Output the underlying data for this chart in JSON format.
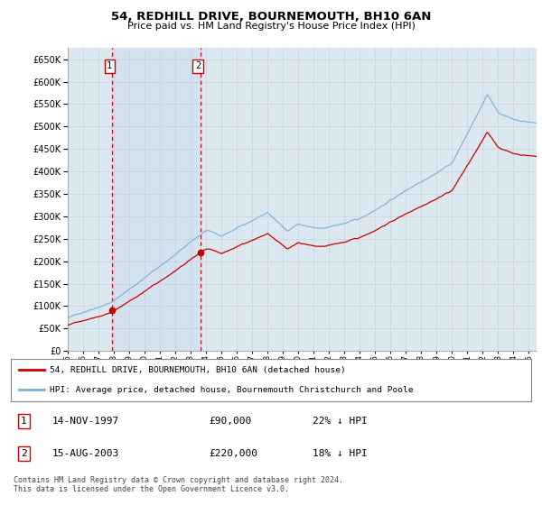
{
  "title1": "54, REDHILL DRIVE, BOURNEMOUTH, BH10 6AN",
  "title2": "Price paid vs. HM Land Registry's House Price Index (HPI)",
  "ytick_values": [
    0,
    50000,
    100000,
    150000,
    200000,
    250000,
    300000,
    350000,
    400000,
    450000,
    500000,
    550000,
    600000,
    650000
  ],
  "xlim_start": 1995.0,
  "xlim_end": 2025.5,
  "ylim_min": 0,
  "ylim_max": 675000,
  "purchase1_date": 1997.87,
  "purchase1_price": 90000,
  "purchase2_date": 2003.62,
  "purchase2_price": 220000,
  "hpi_color": "#7bafd4",
  "price_color": "#cc0000",
  "grid_color": "#c8d0dc",
  "plot_bg_color": "#dce8f0",
  "fig_bg_color": "#ffffff",
  "legend_label1": "54, REDHILL DRIVE, BOURNEMOUTH, BH10 6AN (detached house)",
  "legend_label2": "HPI: Average price, detached house, Bournemouth Christchurch and Poole",
  "table_row1": [
    "1",
    "14-NOV-1997",
    "£90,000",
    "22% ↓ HPI"
  ],
  "table_row2": [
    "2",
    "15-AUG-2003",
    "£220,000",
    "18% ↓ HPI"
  ],
  "footer": "Contains HM Land Registry data © Crown copyright and database right 2024.\nThis data is licensed under the Open Government Licence v3.0.",
  "vline_color": "#cc0000",
  "box_color": "#cc0000",
  "span_color": "#d0dff0",
  "hpi_seed": 42,
  "hpi_noise_std": 2500,
  "red_noise_std": 1800
}
